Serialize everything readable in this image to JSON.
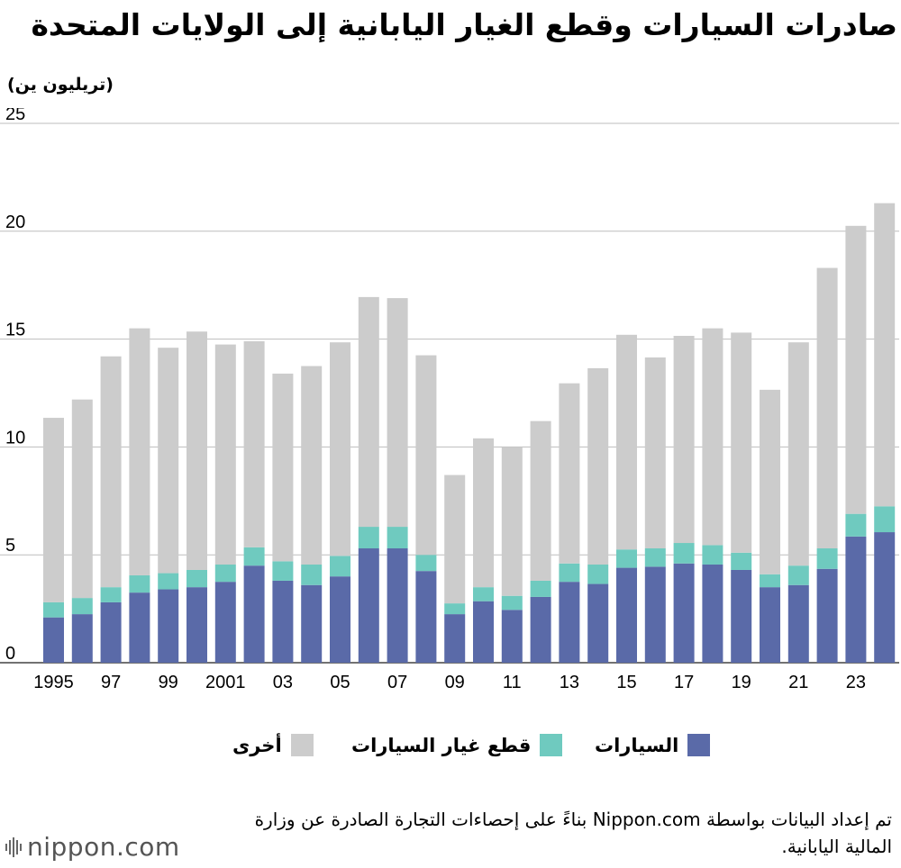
{
  "header": {
    "title": "صادرات السيارات وقطع الغيار اليابانية إلى الولايات المتحدة",
    "unit_label": "(تريليون ين)"
  },
  "chart_data": {
    "type": "bar",
    "stacked": true,
    "title": "صادرات السيارات وقطع الغيار اليابانية إلى الولايات المتحدة",
    "ylabel": "(تريليون ين)",
    "xlabel": "",
    "ylim": [
      0,
      25
    ],
    "yticks": [
      0,
      5,
      10,
      15,
      20,
      25
    ],
    "grid": true,
    "categories": [
      "1995",
      "1996",
      "1997",
      "1998",
      "1999",
      "2000",
      "2001",
      "2002",
      "2003",
      "2004",
      "2005",
      "2006",
      "2007",
      "2008",
      "2009",
      "2010",
      "2011",
      "2012",
      "2013",
      "2014",
      "2015",
      "2016",
      "2017",
      "2018",
      "2019",
      "2020",
      "2021",
      "2022",
      "2023",
      "2024"
    ],
    "tick_labels": [
      "1995",
      "",
      "97",
      "",
      "99",
      "",
      "2001",
      "",
      "03",
      "",
      "05",
      "",
      "07",
      "",
      "09",
      "",
      "11",
      "",
      "13",
      "",
      "15",
      "",
      "17",
      "",
      "19",
      "",
      "21",
      "",
      "23",
      ""
    ],
    "series": [
      {
        "name": "السيارات",
        "color": "#5a6aa8",
        "values": [
          2.1,
          2.25,
          2.8,
          3.25,
          3.4,
          3.5,
          3.75,
          4.5,
          3.8,
          3.6,
          4.0,
          5.3,
          5.3,
          4.25,
          2.25,
          2.85,
          2.45,
          3.05,
          3.75,
          3.65,
          4.4,
          4.45,
          4.6,
          4.55,
          4.3,
          3.5,
          3.6,
          4.35,
          5.85,
          6.05
        ]
      },
      {
        "name": "قطع غيار السيارات",
        "color": "#6fcabf",
        "values": [
          0.7,
          0.75,
          0.7,
          0.8,
          0.75,
          0.8,
          0.8,
          0.85,
          0.9,
          0.95,
          0.95,
          1.0,
          1.0,
          0.75,
          0.5,
          0.65,
          0.65,
          0.75,
          0.85,
          0.9,
          0.85,
          0.85,
          0.95,
          0.9,
          0.8,
          0.6,
          0.9,
          0.95,
          1.05,
          1.2
        ]
      },
      {
        "name": "أخرى",
        "color": "#cccccc",
        "values": [
          8.55,
          9.2,
          10.7,
          11.45,
          10.45,
          11.05,
          10.2,
          9.55,
          8.7,
          9.2,
          9.9,
          10.65,
          10.6,
          9.25,
          5.95,
          6.9,
          6.9,
          7.4,
          8.35,
          9.1,
          9.95,
          8.85,
          9.6,
          10.05,
          10.2,
          8.55,
          10.35,
          13.0,
          13.35,
          14.05
        ]
      }
    ]
  },
  "legend": [
    {
      "label": "السيارات",
      "color": "#5a6aa8"
    },
    {
      "label": "قطع غيار السيارات",
      "color": "#6fcabf"
    },
    {
      "label": "أخرى",
      "color": "#cccccc"
    }
  ],
  "source": {
    "text": "تم إعداد البيانات بواسطة Nippon.com بناءً على إحصاءات التجارة الصادرة عن وزارة المالية اليابانية."
  },
  "brand": {
    "logo_text": "nippon.com",
    "logo_icon": "nippon-waves-icon"
  }
}
